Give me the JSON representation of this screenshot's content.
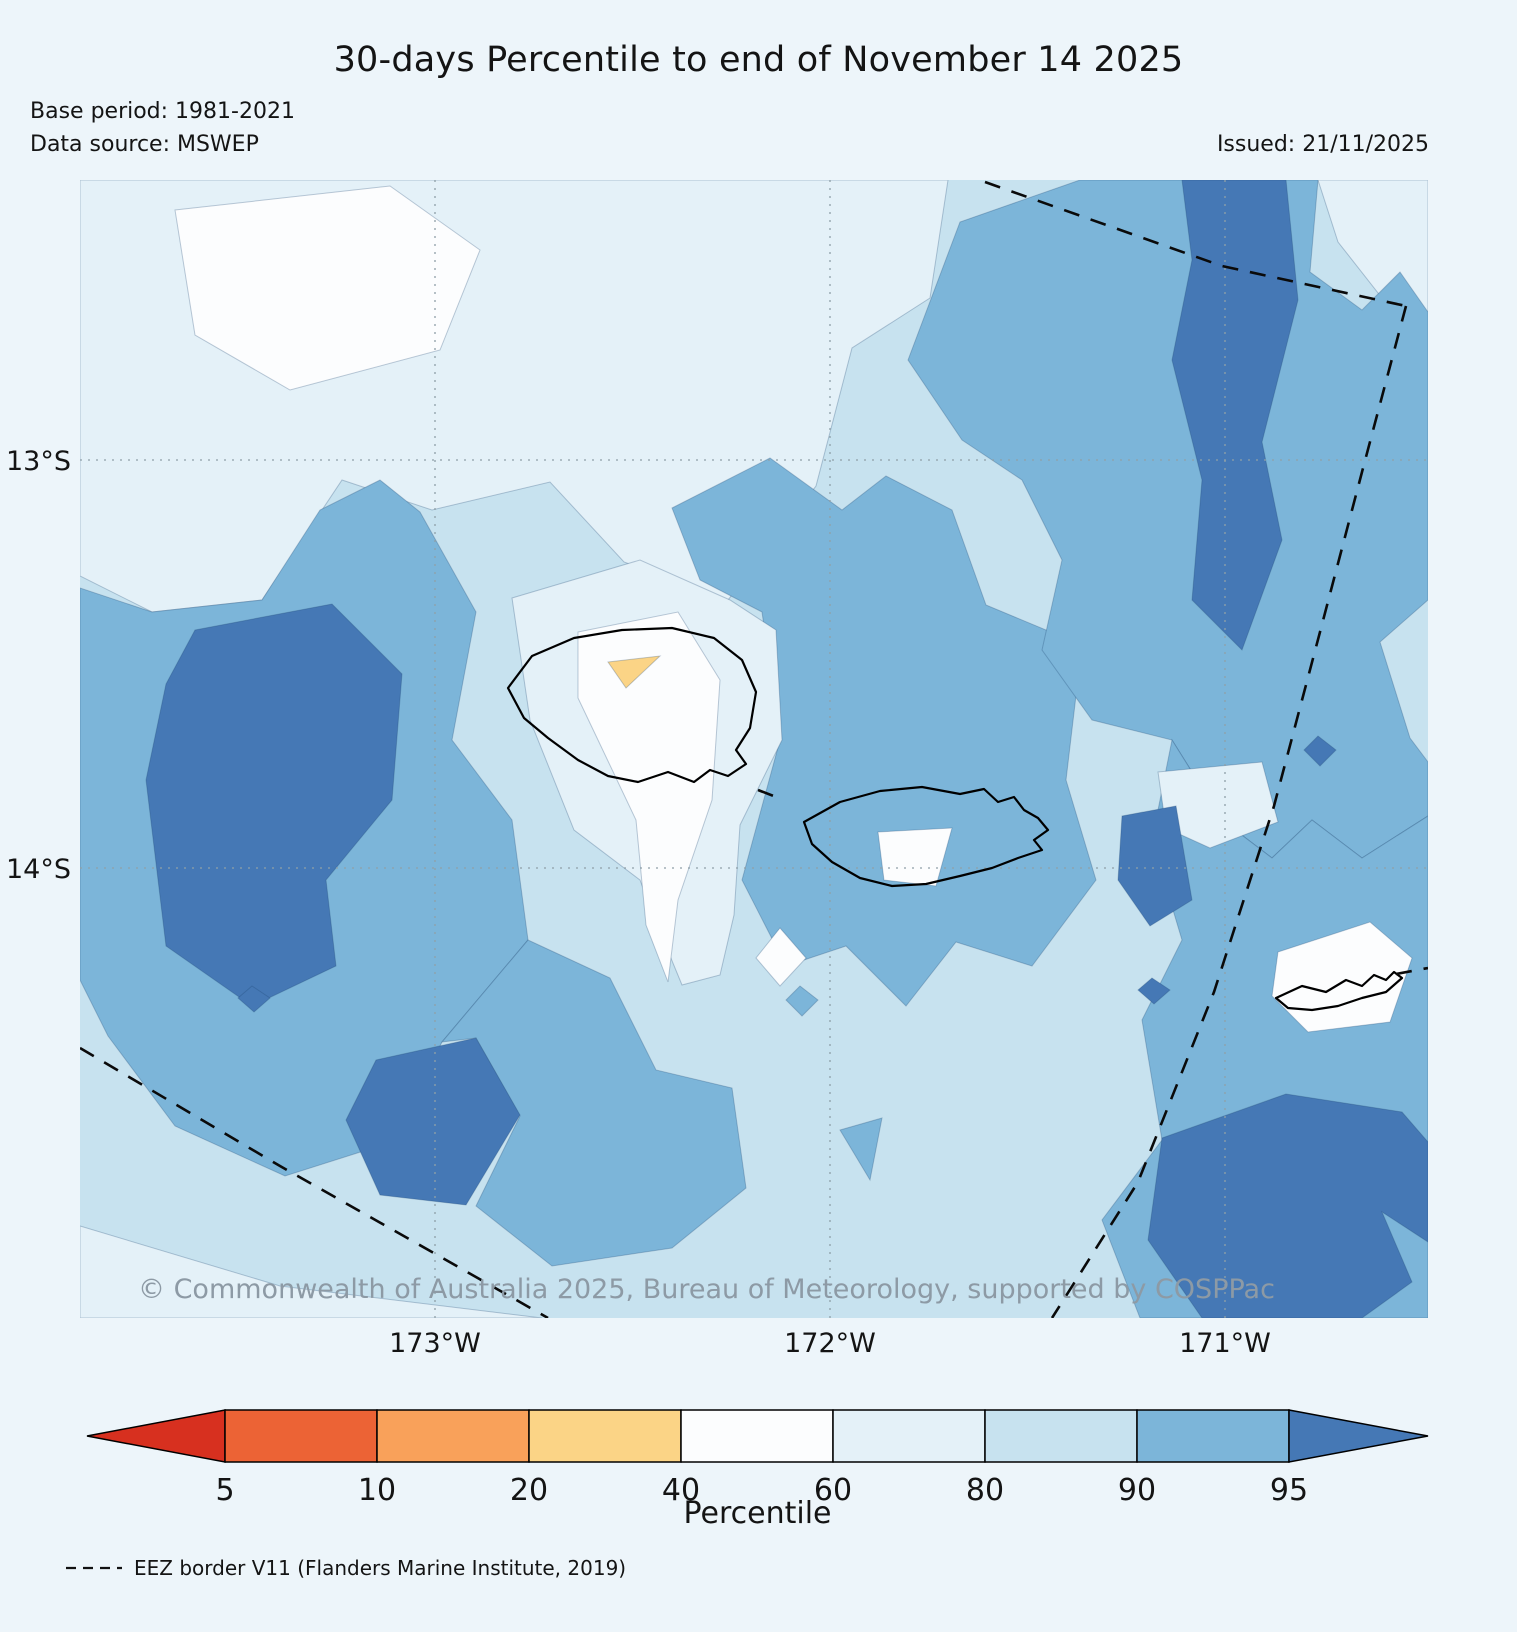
{
  "title": "30-days Percentile to end of November 14 2025",
  "meta": {
    "base_period": "Base period: 1981-2021",
    "data_source": "Data source: MSWEP",
    "issued": "Issued: 21/11/2025"
  },
  "map": {
    "copyright": "© Commonwealth of Australia 2025, Bureau of Meteorology, supported by COSPPac",
    "lat_labels": [
      "13°S",
      "14°S"
    ],
    "lon_labels": [
      "173°W",
      "172°W",
      "171°W"
    ]
  },
  "palette": {
    "background": "#edf5fa",
    "coastline": "#000000",
    "eez_border": "#0a0a0a",
    "grid": "#8fa0a8",
    "copyright_text": "#8d9aa5"
  },
  "legend": {
    "label": "Percentile",
    "ticks": [
      "5",
      "10",
      "20",
      "40",
      "60",
      "80",
      "90",
      "95"
    ],
    "colors": [
      "#d7301f",
      "#ec6335",
      "#f9a15a",
      "#fbd486",
      "#fcfdfe",
      "#e4f1f8",
      "#c7e2ef",
      "#7cb5d9",
      "#4578b5"
    ]
  },
  "footnote": {
    "label": "EEZ border V11 (Flanders Marine Institute, 2019)"
  }
}
